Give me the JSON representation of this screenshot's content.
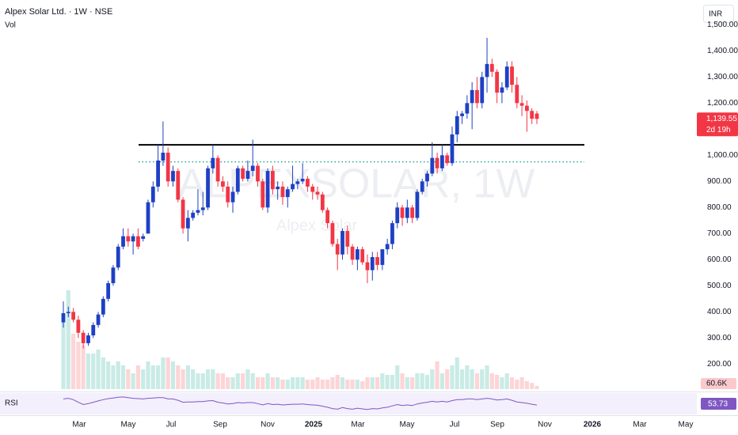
{
  "chart_data": {
    "type": "candlestick",
    "title": "Alpex Solar Ltd. · 1W · NSE",
    "volume_label": "Vol",
    "currency": "INR",
    "watermark": "ALPEXSOLAR, 1W",
    "watermark_name": "Alpex Solar",
    "up_color": "#1e40c4",
    "down_color": "#f23645",
    "up_volume_color": "#c9ebe6",
    "down_volume_color": "#fdd5d7",
    "open": [
      360,
      395,
      400,
      370,
      320,
      280,
      310,
      350,
      390,
      450,
      510,
      570,
      650,
      690,
      670,
      690,
      680,
      700,
      820,
      880,
      980,
      1010,
      900,
      940,
      830,
      720,
      760,
      780,
      790,
      800,
      950,
      990,
      900,
      880,
      820,
      860,
      950,
      910,
      940,
      960,
      900,
      800,
      940,
      870,
      880,
      840,
      870,
      890,
      900,
      910,
      880,
      860,
      850,
      790,
      740,
      660,
      620,
      710,
      650,
      600,
      640,
      590,
      560,
      610,
      580,
      640,
      660,
      740,
      800,
      760,
      800,
      760,
      860,
      900,
      930,
      990,
      950,
      1000,
      970,
      1080,
      1150,
      1160,
      1200,
      1250,
      1200,
      1300,
      1350,
      1320,
      1240,
      1260,
      1340,
      1270,
      1200,
      1190,
      1170,
      1160
    ],
    "high": [
      440,
      420,
      415,
      385,
      330,
      320,
      360,
      400,
      460,
      520,
      580,
      660,
      720,
      720,
      700,
      720,
      700,
      830,
      900,
      1040,
      1130,
      1030,
      960,
      950,
      840,
      790,
      790,
      870,
      860,
      960,
      1040,
      1000,
      920,
      900,
      880,
      960,
      960,
      980,
      1060,
      970,
      910,
      950,
      960,
      900,
      900,
      880,
      960,
      910,
      970,
      920,
      890,
      880,
      860,
      800,
      750,
      680,
      720,
      730,
      660,
      650,
      650,
      620,
      630,
      630,
      640,
      680,
      750,
      820,
      810,
      830,
      810,
      870,
      910,
      940,
      1050,
      1010,
      1040,
      1010,
      1110,
      1170,
      1170,
      1230,
      1280,
      1300,
      1320,
      1450,
      1370,
      1330,
      1280,
      1360,
      1360,
      1300,
      1230,
      1210,
      1180,
      1170
    ],
    "low": [
      340,
      380,
      360,
      300,
      260,
      270,
      300,
      340,
      380,
      440,
      500,
      560,
      640,
      650,
      620,
      640,
      670,
      700,
      800,
      860,
      960,
      880,
      880,
      820,
      700,
      670,
      750,
      770,
      770,
      790,
      930,
      880,
      860,
      800,
      780,
      850,
      900,
      900,
      920,
      880,
      790,
      780,
      850,
      830,
      810,
      800,
      860,
      870,
      890,
      860,
      830,
      830,
      780,
      720,
      650,
      560,
      600,
      620,
      580,
      560,
      580,
      510,
      520,
      560,
      560,
      620,
      640,
      720,
      730,
      740,
      740,
      750,
      850,
      880,
      920,
      930,
      940,
      960,
      960,
      1050,
      1120,
      1140,
      1100,
      1180,
      1180,
      1240,
      1300,
      1200,
      1200,
      1250,
      1240,
      1180,
      1150,
      1090,
      1120,
      1120
    ],
    "close": [
      395,
      400,
      370,
      320,
      280,
      310,
      350,
      390,
      450,
      510,
      570,
      650,
      690,
      670,
      690,
      650,
      690,
      820,
      880,
      980,
      1010,
      900,
      940,
      830,
      720,
      760,
      780,
      790,
      800,
      950,
      990,
      900,
      880,
      820,
      860,
      950,
      910,
      940,
      960,
      900,
      800,
      940,
      870,
      880,
      840,
      870,
      890,
      900,
      910,
      880,
      860,
      850,
      790,
      740,
      660,
      620,
      710,
      650,
      600,
      640,
      590,
      560,
      610,
      580,
      640,
      660,
      740,
      800,
      760,
      800,
      760,
      860,
      900,
      930,
      990,
      950,
      1000,
      970,
      1080,
      1150,
      1160,
      1200,
      1250,
      1200,
      1300,
      1350,
      1320,
      1240,
      1260,
      1340,
      1270,
      1200,
      1190,
      1170,
      1140,
      1139.55
    ],
    "volume": [
      1275000,
      1875000,
      1050000,
      900000,
      825000,
      675000,
      675000,
      750000,
      600000,
      525000,
      450000,
      525000,
      450000,
      375000,
      300000,
      450000,
      375000,
      525000,
      450000,
      450000,
      600000,
      600000,
      525000,
      450000,
      375000,
      450000,
      375000,
      300000,
      300000,
      375000,
      375000,
      300000,
      300000,
      225000,
      225000,
      300000,
      300000,
      375000,
      300000,
      225000,
      225000,
      300000,
      225000,
      225000,
      180000,
      180000,
      225000,
      225000,
      225000,
      180000,
      180000,
      225000,
      180000,
      180000,
      225000,
      270000,
      225000,
      180000,
      180000,
      180000,
      150000,
      225000,
      225000,
      225000,
      300000,
      270000,
      270000,
      450000,
      300000,
      225000,
      225000,
      300000,
      300000,
      270000,
      375000,
      525000,
      300000,
      375000,
      450000,
      600000,
      375000,
      450000,
      375000,
      300000,
      375000,
      450000,
      300000,
      270000,
      225000,
      300000,
      225000,
      180000,
      225000,
      150000,
      120000,
      60600
    ],
    "last_close_label": "1,139.55",
    "countdown": "2d 19h",
    "last_volume_label": "60.6K",
    "rsi_label": "RSI",
    "rsi": [
      72,
      74,
      70,
      62,
      55,
      58,
      62,
      66,
      70,
      73,
      75,
      77,
      78,
      76,
      74,
      73,
      72,
      74,
      75,
      76,
      76,
      72,
      72,
      68,
      62,
      63,
      63,
      64,
      64,
      66,
      67,
      62,
      60,
      57,
      58,
      61,
      60,
      61,
      61,
      58,
      54,
      58,
      55,
      56,
      54,
      55,
      56,
      56,
      57,
      55,
      54,
      53,
      50,
      47,
      43,
      41,
      46,
      43,
      41,
      44,
      42,
      40,
      43,
      42,
      45,
      47,
      51,
      55,
      52,
      54,
      52,
      57,
      60,
      62,
      65,
      63,
      65,
      63,
      67,
      70,
      70,
      72,
      72,
      70,
      72,
      74,
      72,
      69,
      70,
      72,
      68,
      63,
      61,
      59,
      56,
      53.73
    ],
    "rsi_last_label": "53.73",
    "rsi_color": "#7e57c2",
    "rsi_lim": [
      30,
      85
    ],
    "levels": [
      {
        "value": 1040,
        "style": "solid",
        "color": "#000000"
      },
      {
        "value": 975,
        "style": "dotted",
        "color": "#26a69a"
      }
    ],
    "ylim": [
      95,
      1595
    ],
    "yticks": [
      {
        "value": 200,
        "label": "200.00"
      },
      {
        "value": 300,
        "label": "300.00"
      },
      {
        "value": 400,
        "label": "400.00"
      },
      {
        "value": 500,
        "label": "500.00"
      },
      {
        "value": 600,
        "label": "600.00"
      },
      {
        "value": 700,
        "label": "700.00"
      },
      {
        "value": 800,
        "label": "800.00"
      },
      {
        "value": 900,
        "label": "900.00"
      },
      {
        "value": 1000,
        "label": "1,000.00"
      },
      {
        "value": 1100,
        "label": "1,100.00"
      },
      {
        "value": 1200,
        "label": "1,200.00"
      },
      {
        "value": 1300,
        "label": "1,300.00"
      },
      {
        "value": 1400,
        "label": "1,400.00"
      },
      {
        "value": 1500,
        "label": "1,500.00"
      }
    ],
    "x_labels": [
      "Mar",
      "May",
      "Jul",
      "Sep",
      "Nov",
      "2025",
      "Mar",
      "May",
      "Jul",
      "Sep",
      "Nov",
      "2026",
      "Mar",
      "May"
    ]
  }
}
